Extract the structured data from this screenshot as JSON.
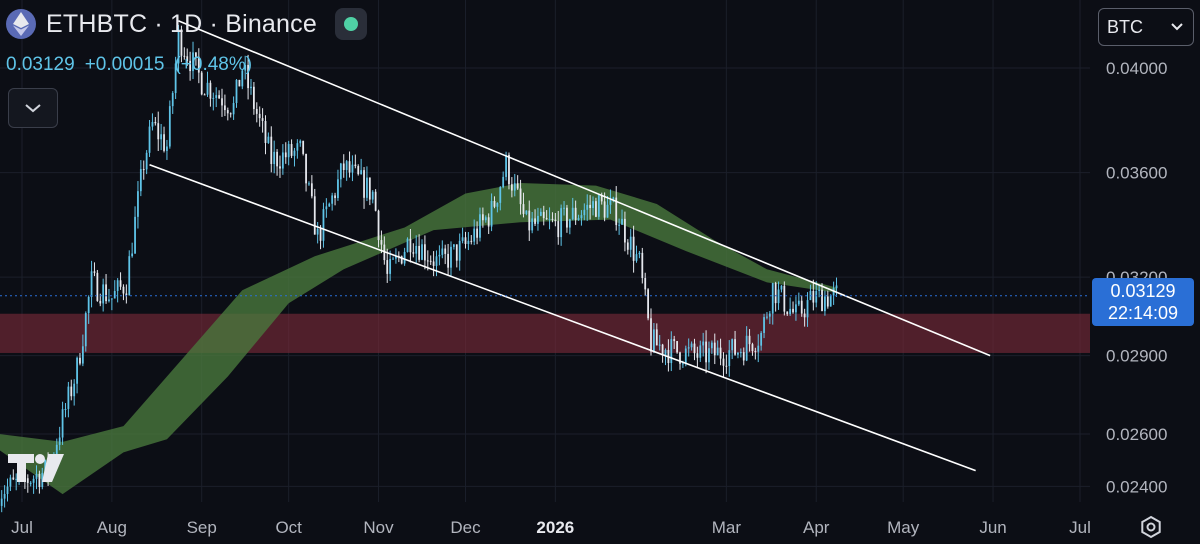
{
  "header": {
    "title": "ETHBTC · 1D · Binance",
    "last_price": "0.03129",
    "change": "+0.00015",
    "change_pct": "(+0.48%)"
  },
  "currency_select": {
    "value": "BTC"
  },
  "price_label": {
    "price": "0.03129",
    "countdown": "22:14:09"
  },
  "colors": {
    "background": "#0c0e15",
    "candle_up": "#5fc4e8",
    "candle_down": "#e6e8ee",
    "cloud": "#4a7a3e",
    "zone": "#7a2a38",
    "price_line": "#2a6fd6",
    "channel": "#ffffff"
  },
  "icons": [
    "ethereum-icon",
    "status-dot-icon",
    "chevron-down-icon",
    "tradingview-logo-icon",
    "settings-icon"
  ],
  "chart_data": {
    "type": "candlestick",
    "ylim": [
      0.0234,
      0.0426
    ],
    "y_ticks": [
      {
        "value": 0.04,
        "label": "0.04000"
      },
      {
        "value": 0.036,
        "label": "0.03600"
      },
      {
        "value": 0.032,
        "label": "0.03200"
      },
      {
        "value": 0.029,
        "label": "0.02900"
      },
      {
        "value": 0.026,
        "label": "0.02600"
      },
      {
        "value": 0.024,
        "label": "0.02400"
      }
    ],
    "x_ticks": [
      {
        "date": "2025-07-01",
        "label": "Jul"
      },
      {
        "date": "2025-08-01",
        "label": "Aug"
      },
      {
        "date": "2025-09-01",
        "label": "Sep"
      },
      {
        "date": "2025-10-01",
        "label": "Oct"
      },
      {
        "date": "2025-11-01",
        "label": "Nov"
      },
      {
        "date": "2025-12-01",
        "label": "Dec"
      },
      {
        "date": "2026-01-01",
        "label": "2026",
        "bold": true
      },
      {
        "date": "2026-03-01",
        "label": "Mar"
      },
      {
        "date": "2026-04-01",
        "label": "Apr"
      },
      {
        "date": "2026-05-01",
        "label": "May"
      },
      {
        "date": "2026-06-01",
        "label": "Jun"
      },
      {
        "date": "2026-07-01",
        "label": "Jul"
      }
    ],
    "x_range": [
      "2025-06-23",
      "2026-07-01"
    ],
    "last_price": 0.03129,
    "close_path": [
      {
        "date": "2025-06-23",
        "close": 0.0238
      },
      {
        "date": "2025-07-10",
        "close": 0.0246
      },
      {
        "date": "2025-07-20",
        "close": 0.0285
      },
      {
        "date": "2025-07-25",
        "close": 0.0318
      },
      {
        "date": "2025-08-01",
        "close": 0.0312
      },
      {
        "date": "2025-08-06",
        "close": 0.0318
      },
      {
        "date": "2025-08-12",
        "close": 0.0364
      },
      {
        "date": "2025-08-15",
        "close": 0.0378
      },
      {
        "date": "2025-08-20",
        "close": 0.037
      },
      {
        "date": "2025-08-24",
        "close": 0.0412
      },
      {
        "date": "2025-09-01",
        "close": 0.0395
      },
      {
        "date": "2025-09-12",
        "close": 0.0385
      },
      {
        "date": "2025-09-15",
        "close": 0.04
      },
      {
        "date": "2025-09-25",
        "close": 0.0365
      },
      {
        "date": "2025-10-05",
        "close": 0.0368
      },
      {
        "date": "2025-10-11",
        "close": 0.0335
      },
      {
        "date": "2025-10-20",
        "close": 0.0362
      },
      {
        "date": "2025-10-30",
        "close": 0.0352
      },
      {
        "date": "2025-11-04",
        "close": 0.032
      },
      {
        "date": "2025-11-12",
        "close": 0.0335
      },
      {
        "date": "2025-11-22",
        "close": 0.0325
      },
      {
        "date": "2025-12-01",
        "close": 0.0332
      },
      {
        "date": "2025-12-10",
        "close": 0.0345
      },
      {
        "date": "2025-12-15",
        "close": 0.0363
      },
      {
        "date": "2025-12-22",
        "close": 0.034
      },
      {
        "date": "2026-01-01",
        "close": 0.034
      },
      {
        "date": "2026-01-15",
        "close": 0.0348
      },
      {
        "date": "2026-01-22",
        "close": 0.0345
      },
      {
        "date": "2026-01-30",
        "close": 0.0325
      },
      {
        "date": "2026-02-03",
        "close": 0.0295
      },
      {
        "date": "2026-02-10",
        "close": 0.0292
      },
      {
        "date": "2026-02-20",
        "close": 0.029
      },
      {
        "date": "2026-03-05",
        "close": 0.0292
      },
      {
        "date": "2026-03-13",
        "close": 0.0298
      },
      {
        "date": "2026-03-17",
        "close": 0.0316
      },
      {
        "date": "2026-03-25",
        "close": 0.0305
      },
      {
        "date": "2026-03-31",
        "close": 0.0312
      },
      {
        "date": "2026-04-08",
        "close": 0.03129
      }
    ],
    "channel_upper": [
      {
        "date": "2025-08-24",
        "value": 0.0418
      },
      {
        "date": "2026-05-31",
        "value": 0.029
      }
    ],
    "channel_lower": [
      {
        "date": "2025-08-14",
        "value": 0.0363
      },
      {
        "date": "2026-05-26",
        "value": 0.0246
      }
    ],
    "resistance_zone": {
      "from": 0.0291,
      "to": 0.0306
    },
    "cloud": {
      "upper": [
        {
          "date": "2025-06-23",
          "value": 0.026
        },
        {
          "date": "2025-07-15",
          "value": 0.0257
        },
        {
          "date": "2025-08-05",
          "value": 0.0263
        },
        {
          "date": "2025-08-20",
          "value": 0.0282
        },
        {
          "date": "2025-09-15",
          "value": 0.0315
        },
        {
          "date": "2025-10-10",
          "value": 0.0328
        },
        {
          "date": "2025-11-10",
          "value": 0.0339
        },
        {
          "date": "2025-12-01",
          "value": 0.0352
        },
        {
          "date": "2025-12-20",
          "value": 0.0356
        },
        {
          "date": "2026-01-15",
          "value": 0.0355
        },
        {
          "date": "2026-02-05",
          "value": 0.0348
        },
        {
          "date": "2026-02-25",
          "value": 0.0334
        },
        {
          "date": "2026-03-15",
          "value": 0.0323
        },
        {
          "date": "2026-04-08",
          "value": 0.0316
        }
      ],
      "lower": [
        {
          "date": "2025-06-23",
          "value": 0.0254
        },
        {
          "date": "2025-07-15",
          "value": 0.0237
        },
        {
          "date": "2025-08-05",
          "value": 0.0253
        },
        {
          "date": "2025-08-20",
          "value": 0.0258
        },
        {
          "date": "2025-09-10",
          "value": 0.0282
        },
        {
          "date": "2025-10-01",
          "value": 0.031
        },
        {
          "date": "2025-10-20",
          "value": 0.0323
        },
        {
          "date": "2025-11-20",
          "value": 0.0338
        },
        {
          "date": "2025-12-20",
          "value": 0.0341
        },
        {
          "date": "2026-01-20",
          "value": 0.0342
        },
        {
          "date": "2026-02-15",
          "value": 0.033
        },
        {
          "date": "2026-03-15",
          "value": 0.0318
        },
        {
          "date": "2026-04-08",
          "value": 0.0314
        }
      ]
    }
  }
}
